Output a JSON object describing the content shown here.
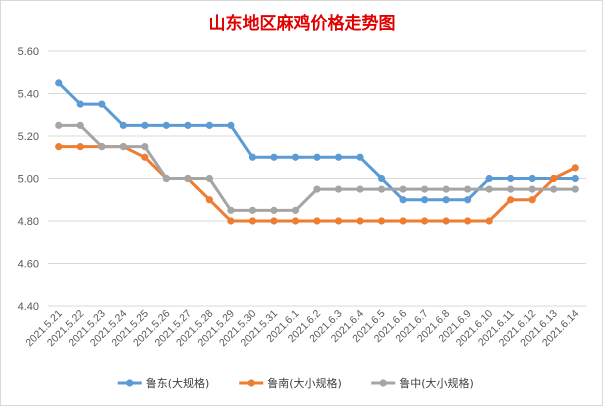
{
  "chart_data": {
    "type": "line",
    "title": "山东地区麻鸡价格走势图",
    "xlabel": "",
    "ylabel": "",
    "categories": [
      "2021.5.21",
      "2021.5.22",
      "2021.5.23",
      "2021.5.24",
      "2021.5.25",
      "2021.5.26",
      "2021.5.27",
      "2021.5.28",
      "2021.5.29",
      "2021.5.30",
      "2021.5.31",
      "2021.6.1",
      "2021.6.2",
      "2021.6.3",
      "2021.6.4",
      "2021.6.5",
      "2021.6.6",
      "2021.6.7",
      "2021.6.8",
      "2021.6.9",
      "2021.6.10",
      "2021.6.11",
      "2021.6.12",
      "2021.6.13",
      "2021.6.14"
    ],
    "ylim": [
      4.4,
      5.6
    ],
    "yticks": [
      "4.40",
      "4.60",
      "4.80",
      "5.00",
      "5.20",
      "5.40",
      "5.60"
    ],
    "grid": true,
    "legend_position": "bottom",
    "series": [
      {
        "name": "鲁东(大规格)",
        "color": "#5b9bd5",
        "values": [
          5.45,
          5.35,
          5.35,
          5.25,
          5.25,
          5.25,
          5.25,
          5.25,
          5.25,
          5.1,
          5.1,
          5.1,
          5.1,
          5.1,
          5.1,
          5.0,
          4.9,
          4.9,
          4.9,
          4.9,
          5.0,
          5.0,
          5.0,
          5.0,
          5.0
        ]
      },
      {
        "name": "鲁南(大小规格)",
        "color": "#ed7d31",
        "values": [
          5.15,
          5.15,
          5.15,
          5.15,
          5.1,
          5.0,
          5.0,
          4.9,
          4.8,
          4.8,
          4.8,
          4.8,
          4.8,
          4.8,
          4.8,
          4.8,
          4.8,
          4.8,
          4.8,
          4.8,
          4.8,
          4.9,
          4.9,
          5.0,
          5.05
        ]
      },
      {
        "name": "鲁中(大小规格)",
        "color": "#a5a5a5",
        "values": [
          5.25,
          5.25,
          5.15,
          5.15,
          5.15,
          5.0,
          5.0,
          5.0,
          4.85,
          4.85,
          4.85,
          4.85,
          4.95,
          4.95,
          4.95,
          4.95,
          4.95,
          4.95,
          4.95,
          4.95,
          4.95,
          4.95,
          4.95,
          4.95,
          4.95
        ]
      }
    ]
  }
}
